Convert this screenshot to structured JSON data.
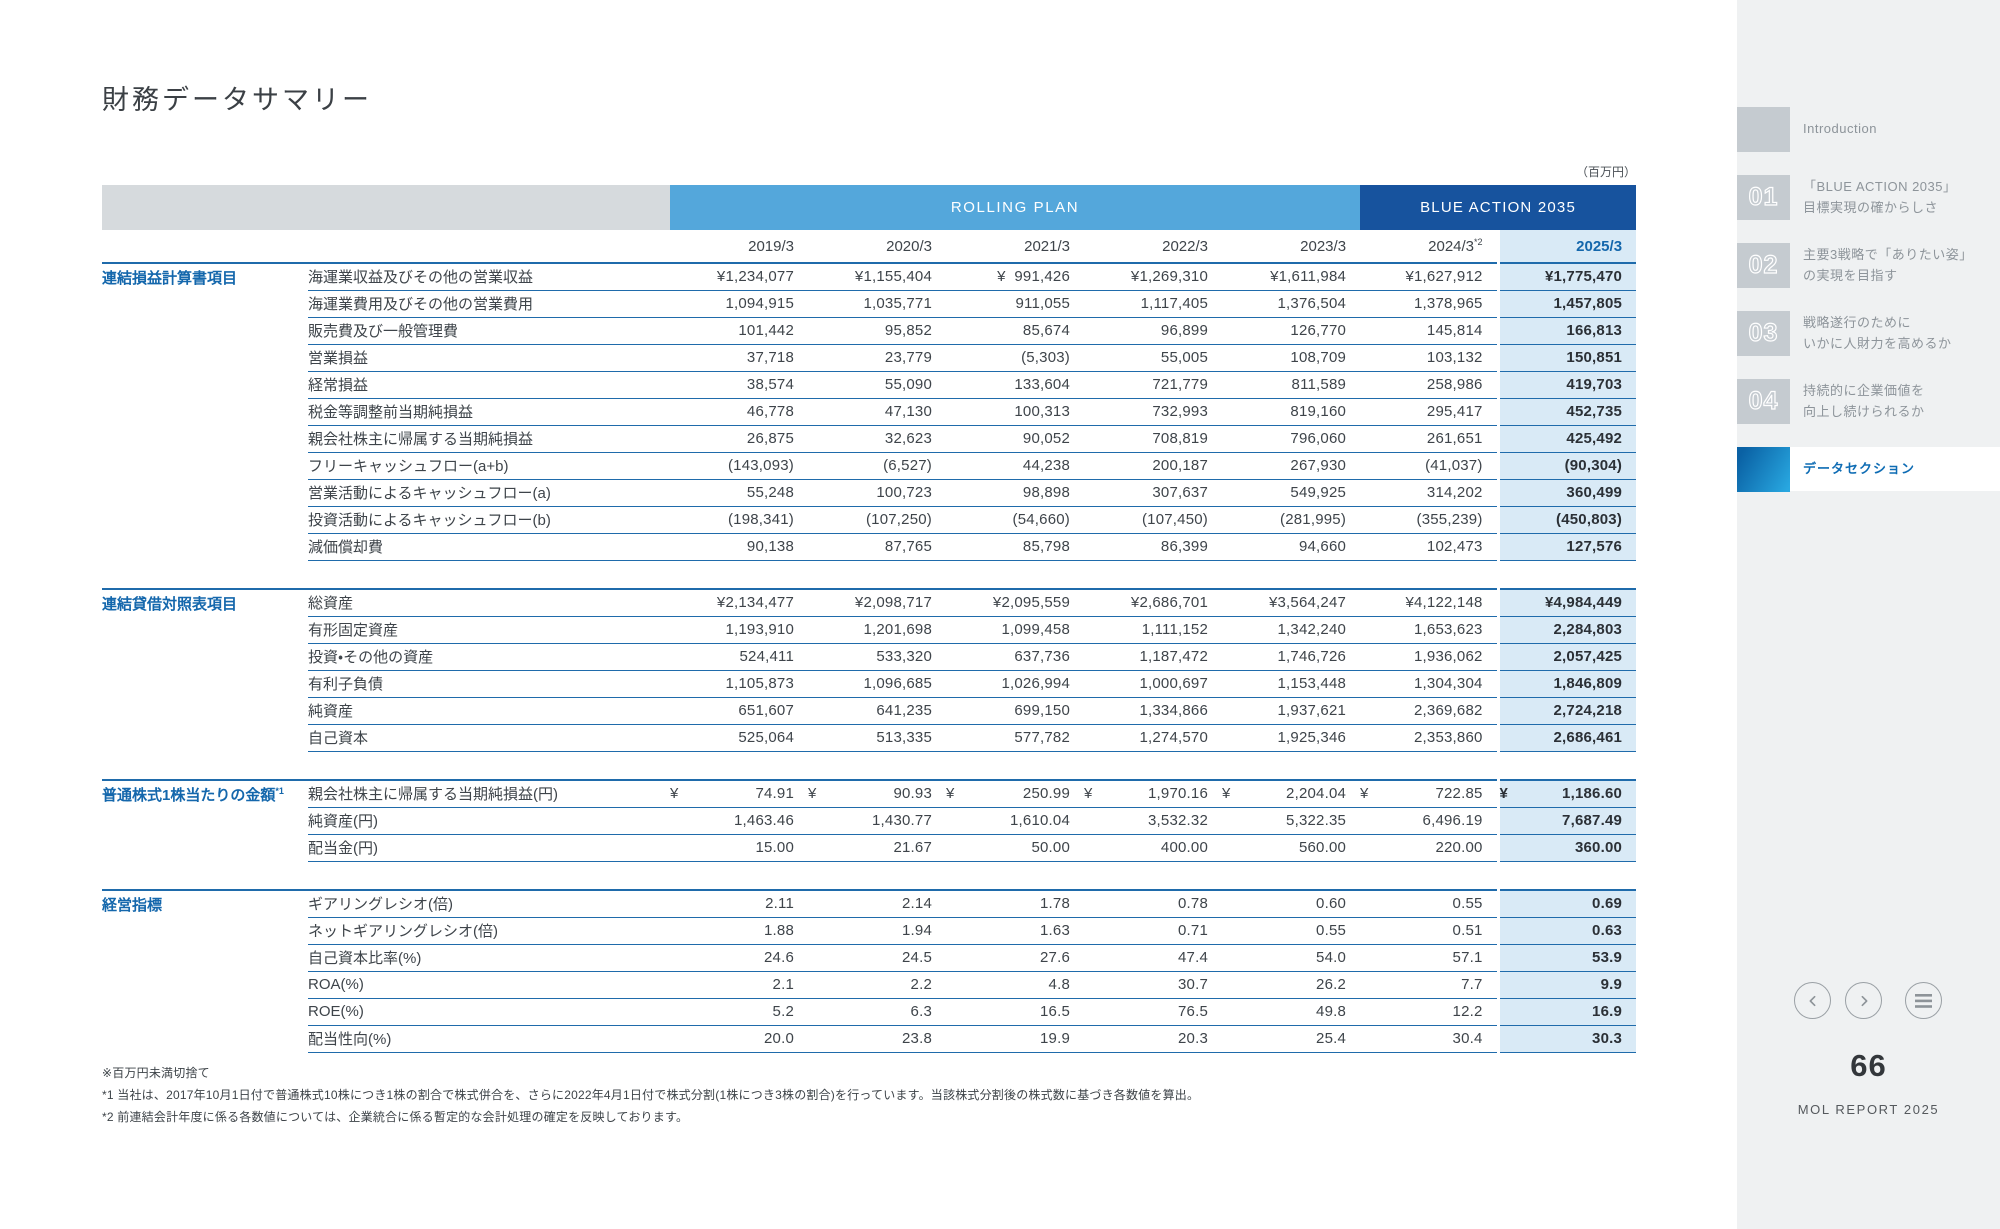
{
  "page": {
    "title": "財務データサマリー"
  },
  "colors": {
    "accent_blue": "#1467ac",
    "band_light_blue": "#54a7db",
    "band_dark_blue": "#17539e",
    "header_gray": "#d6dadd",
    "highlight_column": "#d9eaf6",
    "rule_blue": "#1f6bab"
  },
  "table": {
    "unit_note": "（百万円）",
    "bands": [
      {
        "label": "ROLLING PLAN",
        "span": 5,
        "style": "light"
      },
      {
        "label": "BLUE ACTION 2035",
        "span": 2,
        "style": "dark"
      }
    ],
    "years": [
      {
        "label": "2019/3"
      },
      {
        "label": "2020/3"
      },
      {
        "label": "2021/3"
      },
      {
        "label": "2022/3"
      },
      {
        "label": "2023/3"
      },
      {
        "label": "2024/3",
        "sup": "*2"
      },
      {
        "label": "2025/3",
        "highlight": true
      }
    ],
    "groups": [
      {
        "slug": "income-statement",
        "label": "連結損益計算書項目",
        "rows": [
          {
            "item": "海運業収益及びその他の営業収益",
            "values": [
              "¥1,234,077",
              "¥1,155,404",
              "¥  991,426",
              "¥1,269,310",
              "¥1,611,984",
              "¥1,627,912",
              "¥1,775,470"
            ]
          },
          {
            "item": "海運業費用及びその他の営業費用",
            "values": [
              "1,094,915",
              "1,035,771",
              "911,055",
              "1,117,405",
              "1,376,504",
              "1,378,965",
              "1,457,805"
            ]
          },
          {
            "item": "販売費及び一般管理費",
            "values": [
              "101,442",
              "95,852",
              "85,674",
              "96,899",
              "126,770",
              "145,814",
              "166,813"
            ]
          },
          {
            "item": "営業損益",
            "values": [
              "37,718",
              "23,779",
              "(5,303)",
              "55,005",
              "108,709",
              "103,132",
              "150,851"
            ]
          },
          {
            "item": "経常損益",
            "values": [
              "38,574",
              "55,090",
              "133,604",
              "721,779",
              "811,589",
              "258,986",
              "419,703"
            ]
          },
          {
            "item": "税金等調整前当期純損益",
            "values": [
              "46,778",
              "47,130",
              "100,313",
              "732,993",
              "819,160",
              "295,417",
              "452,735"
            ]
          },
          {
            "item": "親会社株主に帰属する当期純損益",
            "values": [
              "26,875",
              "32,623",
              "90,052",
              "708,819",
              "796,060",
              "261,651",
              "425,492"
            ]
          },
          {
            "item": "フリーキャッシュフロー(a+b)",
            "values": [
              "(143,093)",
              "(6,527)",
              "44,238",
              "200,187",
              "267,930",
              "(41,037)",
              "(90,304)"
            ]
          },
          {
            "item": "営業活動によるキャッシュフロー(a)",
            "values": [
              "55,248",
              "100,723",
              "98,898",
              "307,637",
              "549,925",
              "314,202",
              "360,499"
            ]
          },
          {
            "item": "投資活動によるキャッシュフロー(b)",
            "values": [
              "(198,341)",
              "(107,250)",
              "(54,660)",
              "(107,450)",
              "(281,995)",
              "(355,239)",
              "(450,803)"
            ]
          },
          {
            "item": "減価償却費",
            "values": [
              "90,138",
              "87,765",
              "85,798",
              "86,399",
              "94,660",
              "102,473",
              "127,576"
            ]
          }
        ]
      },
      {
        "slug": "balance-sheet",
        "label": "連結貸借対照表項目",
        "rows": [
          {
            "item": "総資産",
            "values": [
              "¥2,134,477",
              "¥2,098,717",
              "¥2,095,559",
              "¥2,686,701",
              "¥3,564,247",
              "¥4,122,148",
              "¥4,984,449"
            ]
          },
          {
            "item": "有形固定資産",
            "values": [
              "1,193,910",
              "1,201,698",
              "1,099,458",
              "1,111,152",
              "1,342,240",
              "1,653,623",
              "2,284,803"
            ]
          },
          {
            "item": "投資・その他の資産",
            "values": [
              "524,411",
              "533,320",
              "637,736",
              "1,187,472",
              "1,746,726",
              "1,936,062",
              "2,057,425"
            ]
          },
          {
            "item": "有利子負債",
            "values": [
              "1,105,873",
              "1,096,685",
              "1,026,994",
              "1,000,697",
              "1,153,448",
              "1,304,304",
              "1,846,809"
            ]
          },
          {
            "item": "純資産",
            "values": [
              "651,607",
              "641,235",
              "699,150",
              "1,334,866",
              "1,937,621",
              "2,369,682",
              "2,724,218"
            ]
          },
          {
            "item": "自己資本",
            "values": [
              "525,064",
              "513,335",
              "577,782",
              "1,274,570",
              "1,925,346",
              "2,353,860",
              "2,686,461"
            ]
          }
        ]
      },
      {
        "slug": "per-share",
        "label": "普通株式1株当たりの金額",
        "sup": "*1",
        "rows": [
          {
            "item": "親会社株主に帰属する当期純損益(円)",
            "values": [
              "¥|74.91",
              "¥|90.93",
              "¥|250.99",
              "¥|1,970.16",
              "¥|2,204.04",
              "¥|722.85",
              "¥|1,186.60"
            ]
          },
          {
            "item": "純資産(円)",
            "values": [
              "1,463.46",
              "1,430.77",
              "1,610.04",
              "3,532.32",
              "5,322.35",
              "6,496.19",
              "7,687.49"
            ]
          },
          {
            "item": "配当金(円)",
            "values": [
              "15.00",
              "21.67",
              "50.00",
              "400.00",
              "560.00",
              "220.00",
              "360.00"
            ]
          }
        ]
      },
      {
        "slug": "management-indicators",
        "label": "経営指標",
        "rows": [
          {
            "item": "ギアリングレシオ(倍)",
            "values": [
              "2.11",
              "2.14",
              "1.78",
              "0.78",
              "0.60",
              "0.55",
              "0.69"
            ]
          },
          {
            "item": "ネットギアリングレシオ(倍)",
            "values": [
              "1.88",
              "1.94",
              "1.63",
              "0.71",
              "0.55",
              "0.51",
              "0.63"
            ]
          },
          {
            "item": "自己資本比率(%)",
            "values": [
              "24.6",
              "24.5",
              "27.6",
              "47.4",
              "54.0",
              "57.1",
              "53.9"
            ]
          },
          {
            "item": "ROA(%)",
            "values": [
              "2.1",
              "2.2",
              "4.8",
              "30.7",
              "26.2",
              "7.7",
              "9.9"
            ]
          },
          {
            "item": "ROE(%)",
            "values": [
              "5.2",
              "6.3",
              "16.5",
              "76.5",
              "49.8",
              "12.2",
              "16.9"
            ]
          },
          {
            "item": "配当性向(%)",
            "values": [
              "20.0",
              "23.8",
              "19.9",
              "20.3",
              "25.4",
              "30.4",
              "30.3"
            ]
          }
        ]
      }
    ]
  },
  "footnotes": [
    "※百万円未満切捨て",
    "*1 当社は、2017年10月1日付で普通株式10株につき1株の割合で株式併合を、さらに2022年4月1日付で株式分割(1株につき3株の割合)を行っています。当該株式分割後の株式数に基づき各数値を算出。",
    "*2 前連結会計年度に係る各数値については、企業統合に係る暫定的な会計処理の確定を反映しております。"
  ],
  "sidebar": {
    "items": [
      {
        "slug": "introduction",
        "num": "",
        "lines": [
          "Introduction"
        ]
      },
      {
        "slug": "section-01",
        "num": "01",
        "lines": [
          "「BLUE ACTION 2035」",
          "目標実現の確からしさ"
        ]
      },
      {
        "slug": "section-02",
        "num": "02",
        "lines": [
          "主要3戦略で「ありたい姿」",
          "の実現を目指す"
        ]
      },
      {
        "slug": "section-03",
        "num": "03",
        "lines": [
          "戦略遂行のために",
          "いかに人財力を高めるか"
        ]
      },
      {
        "slug": "section-04",
        "num": "04",
        "lines": [
          "持続的に企業価値を",
          "向上し続けられるか"
        ]
      },
      {
        "slug": "data-section",
        "num": "",
        "lines": [
          "データセクション"
        ],
        "active": true
      }
    ],
    "nav_icons": [
      "chevron-left-icon",
      "chevron-right-icon",
      "menu-icon"
    ],
    "page_number": "66",
    "report_label": "MOL REPORT 2025"
  }
}
